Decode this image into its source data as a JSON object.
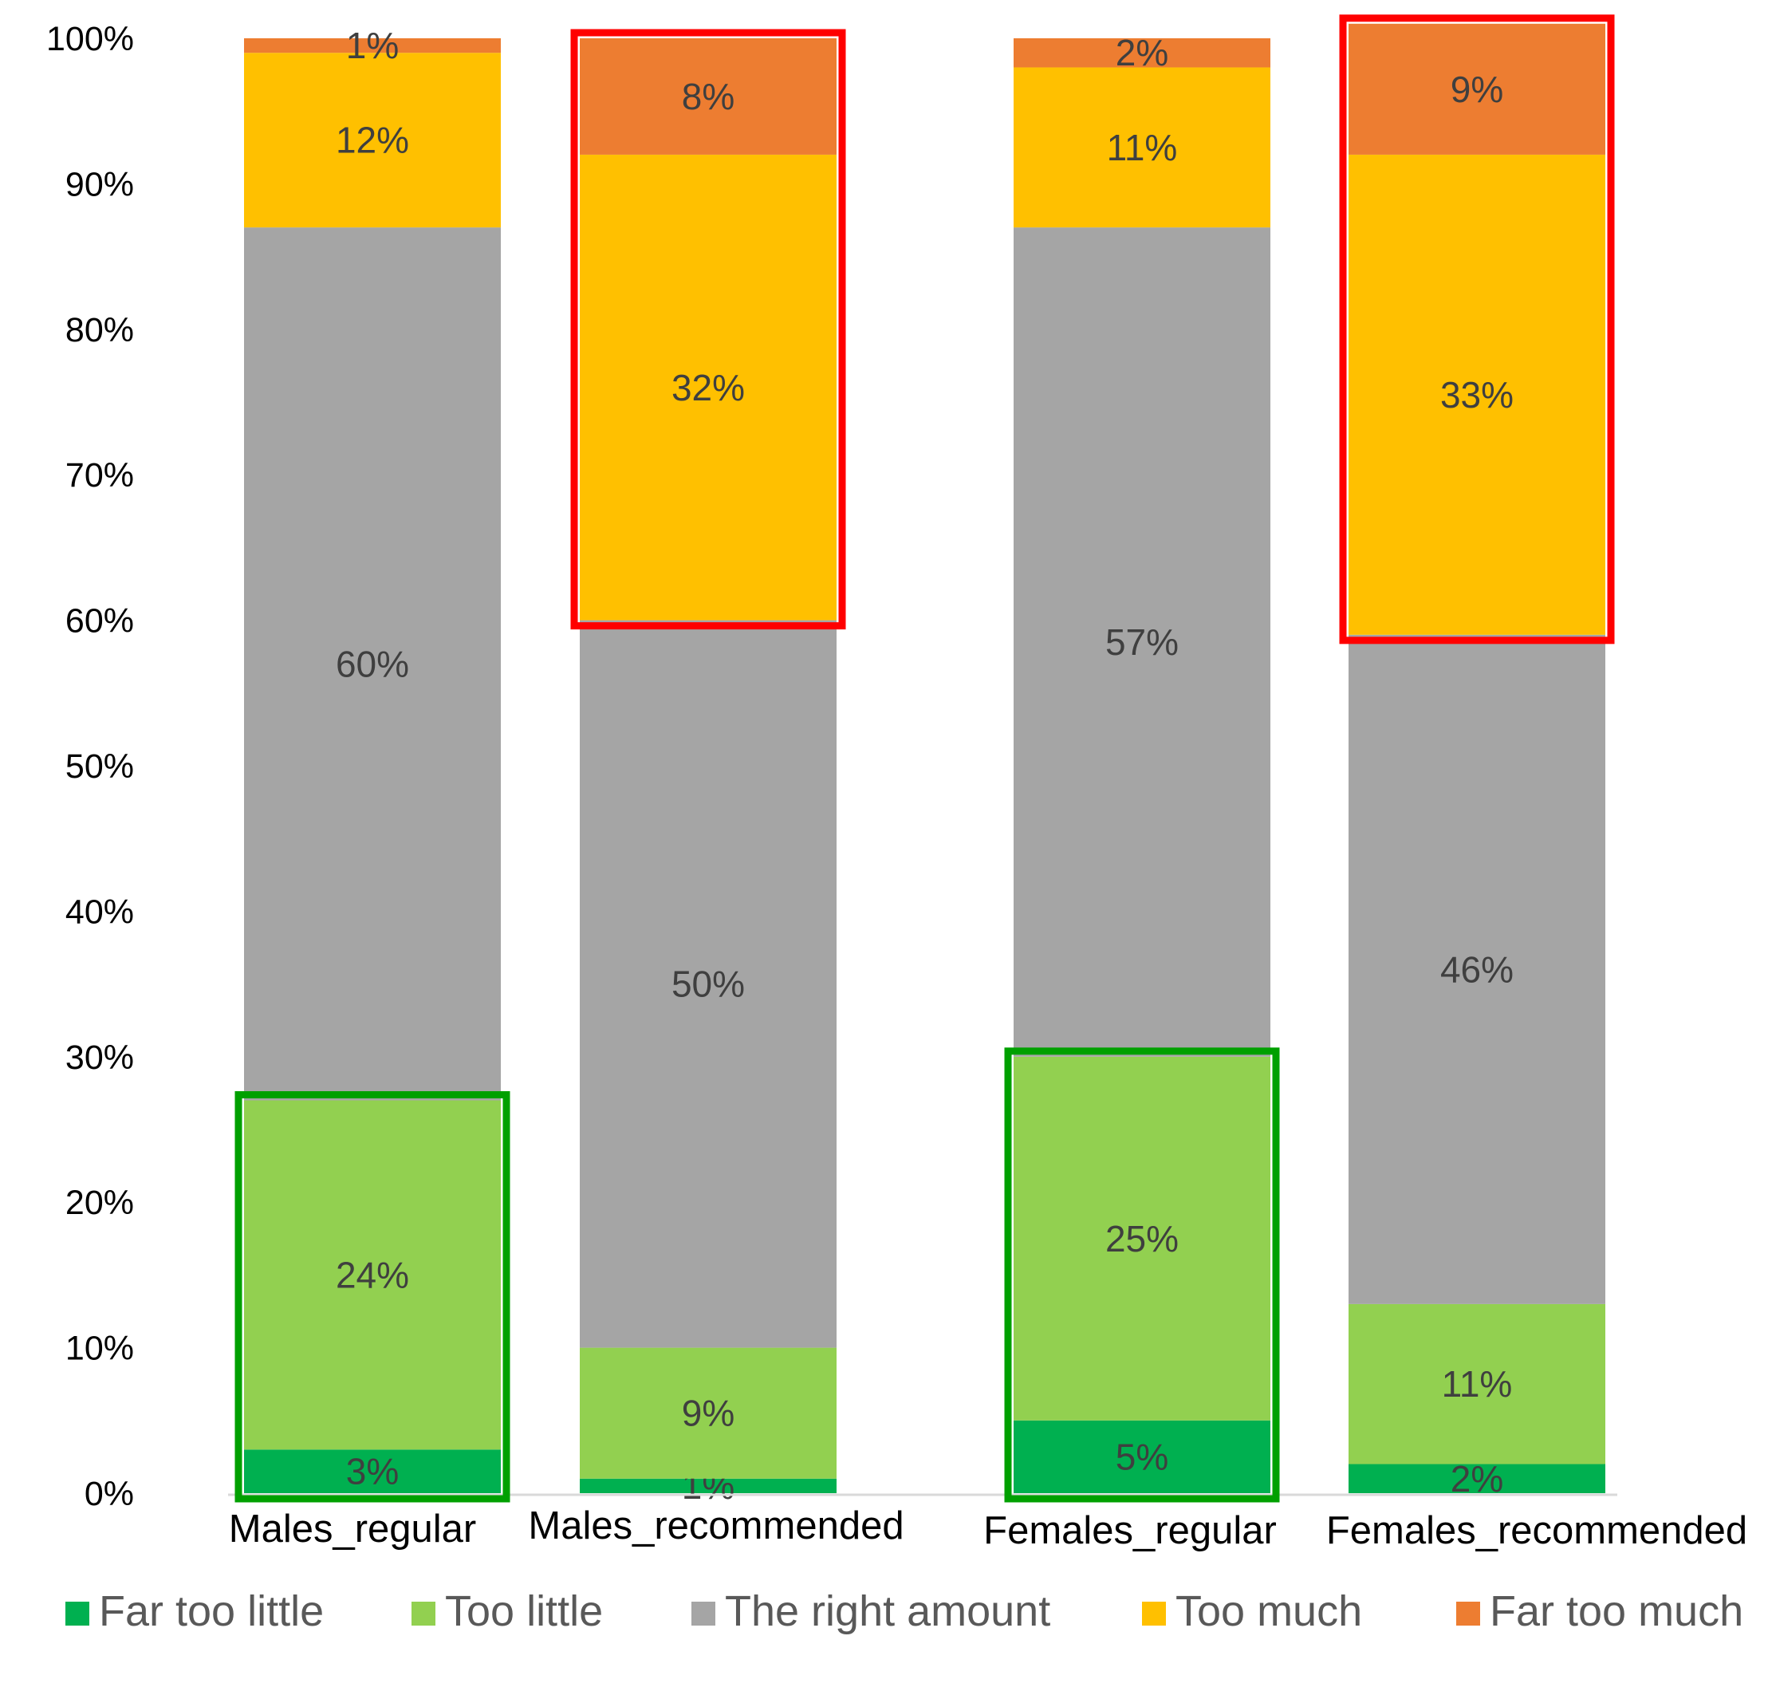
{
  "chart_data": {
    "type": "bar",
    "stacked": true,
    "percent": true,
    "categories": [
      "Males_regular",
      "Males_recommended",
      "Females_regular",
      "Females_recommended"
    ],
    "y_ticks": [
      "0%",
      "10%",
      "20%",
      "30%",
      "40%",
      "50%",
      "60%",
      "70%",
      "80%",
      "90%",
      "100%"
    ],
    "ylim": [
      0,
      100
    ],
    "grid": false,
    "legend_position": "bottom",
    "series": [
      {
        "name": "Far too little",
        "color": "#00b050",
        "values": [
          3,
          1,
          5,
          2
        ],
        "labels": [
          "3%",
          "1%",
          "5%",
          "2%"
        ]
      },
      {
        "name": "Too little",
        "color": "#92d050",
        "values": [
          24,
          9,
          25,
          11
        ],
        "labels": [
          "24%",
          "9%",
          "25%",
          "11%"
        ]
      },
      {
        "name": "The right amount",
        "color": "#a5a5a5",
        "values": [
          60,
          50,
          57,
          46
        ],
        "labels": [
          "60%",
          "50%",
          "57%",
          "46%"
        ]
      },
      {
        "name": "Too much",
        "color": "#ffc000",
        "values": [
          12,
          32,
          11,
          33
        ],
        "labels": [
          "12%",
          "32%",
          "11%",
          "33%"
        ]
      },
      {
        "name": "Far too much",
        "color": "#ed7d31",
        "values": [
          1,
          8,
          2,
          9
        ],
        "labels": [
          "1%",
          "8%",
          "2%",
          "9%"
        ]
      }
    ],
    "highlights": [
      {
        "category": "Males_regular",
        "segments": [
          "Far too little",
          "Too little"
        ],
        "color": "#00a000"
      },
      {
        "category": "Males_recommended",
        "segments": [
          "Too much",
          "Far too much"
        ],
        "color": "#ff0000"
      },
      {
        "category": "Females_regular",
        "segments": [
          "Far too little",
          "Too little"
        ],
        "color": "#00a000"
      },
      {
        "category": "Females_recommended",
        "segments": [
          "Too much",
          "Far too much"
        ],
        "color": "#ff0000"
      }
    ]
  }
}
